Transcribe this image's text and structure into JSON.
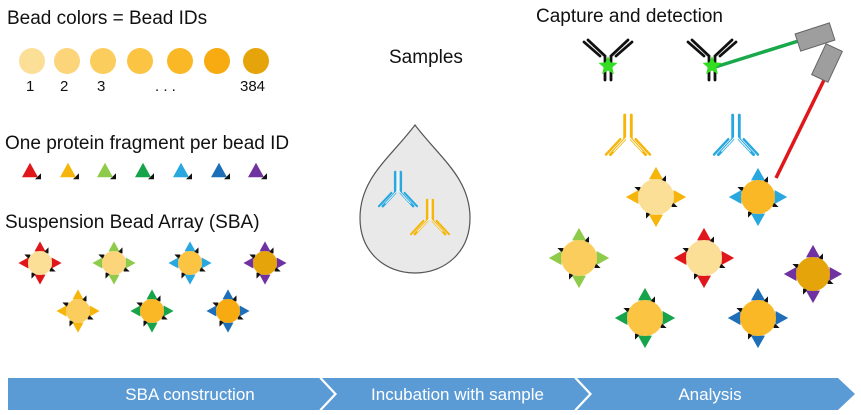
{
  "bead_section": {
    "title": "Bead colors = Bead IDs",
    "bead_numbers": [
      "1",
      "2",
      "3",
      ". . .",
      "384"
    ],
    "bead_colors": [
      "#fcdf97",
      "#fcd57b",
      "#fbcd5d",
      "#fbc442",
      "#fbb826",
      "#f7ab10",
      "#e6a40b"
    ]
  },
  "protein_section": {
    "title": "One protein fragment per bead ID",
    "fragment_colors": [
      "#e0171a",
      "#f5b50a",
      "#8fcb4a",
      "#16a34a",
      "#29a8e0",
      "#1f6fb8",
      "#7032a0"
    ]
  },
  "sba_section": {
    "title": "Suspension Bead Array (SBA)"
  },
  "samples_section": {
    "title": "Samples",
    "drop_color": "#e9e9e9",
    "antibody_colors": [
      "#29a8e0",
      "#f5b50a"
    ]
  },
  "capture_section": {
    "title": "Capture and detection",
    "laser_colors": [
      "#19a84a",
      "#e0171a"
    ],
    "star_color": "#33dd22"
  },
  "workflow": {
    "arrow_color": "#5b9bd5",
    "steps": [
      "SBA construction",
      "Incubation with sample",
      "Analysis"
    ]
  }
}
